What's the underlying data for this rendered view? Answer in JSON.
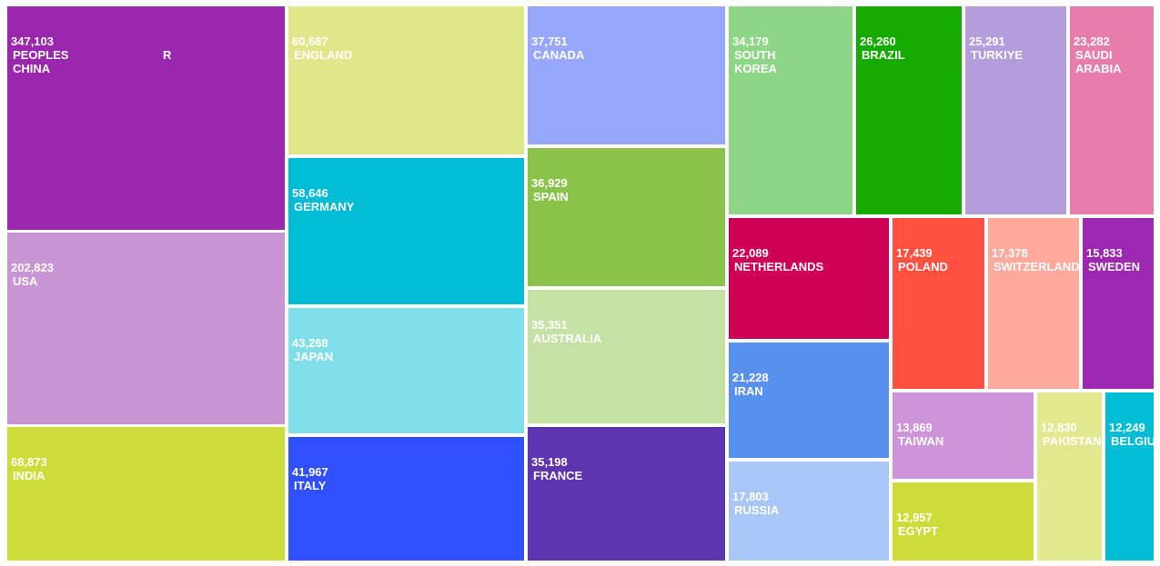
{
  "chart_data": {
    "type": "treemap",
    "categories": [
      "PEOPLES R CHINA",
      "USA",
      "INDIA",
      "ENGLAND",
      "GERMANY",
      "JAPAN",
      "ITALY",
      "CANADA",
      "SPAIN",
      "AUSTRALIA",
      "FRANCE",
      "SOUTH KOREA",
      "BRAZIL",
      "TURKIYE",
      "SAUDI ARABIA",
      "NETHERLANDS",
      "IRAN",
      "RUSSIA",
      "POLAND",
      "SWITZERLAND",
      "SWEDEN",
      "TAIWAN",
      "EGYPT",
      "PAKISTAN",
      "BELGIUM"
    ],
    "values": [
      347103,
      202823,
      68873,
      60687,
      58646,
      43268,
      41967,
      37751,
      36929,
      35351,
      35198,
      34179,
      26260,
      25291,
      23282,
      22089,
      21228,
      17803,
      17439,
      17378,
      15833,
      13869,
      12957,
      12830,
      12249
    ],
    "value_labels": [
      "347,103",
      "202,823",
      "68,873",
      "60,687",
      "58,646",
      "43,268",
      "41,967",
      "37,751",
      "36,929",
      "35,351",
      "35,198",
      "34,179",
      "26,260",
      "25,291",
      "23,282",
      "22,089",
      "21,228",
      "17,803",
      "17,439",
      "17,378",
      "15,833",
      "13,869",
      "12,957",
      "12,830",
      "12,249"
    ],
    "colors": [
      "#9b27af",
      "#c994d4",
      "#cddc39",
      "#e0e68a",
      "#00bcd4",
      "#80deea",
      "#304ffe",
      "#96a7fc",
      "#8bc34a",
      "#c5e1a5",
      "#5e35b1",
      "#8dd685",
      "#15ab00",
      "#b39ddb",
      "#e67daa",
      "#d00057",
      "#5890f0",
      "#a8c6f7",
      "#ff5040",
      "#ffa89c",
      "#9c27b0",
      "#ce93d8",
      "#cddc39",
      "#e2e88e",
      "#00bcd4"
    ]
  }
}
